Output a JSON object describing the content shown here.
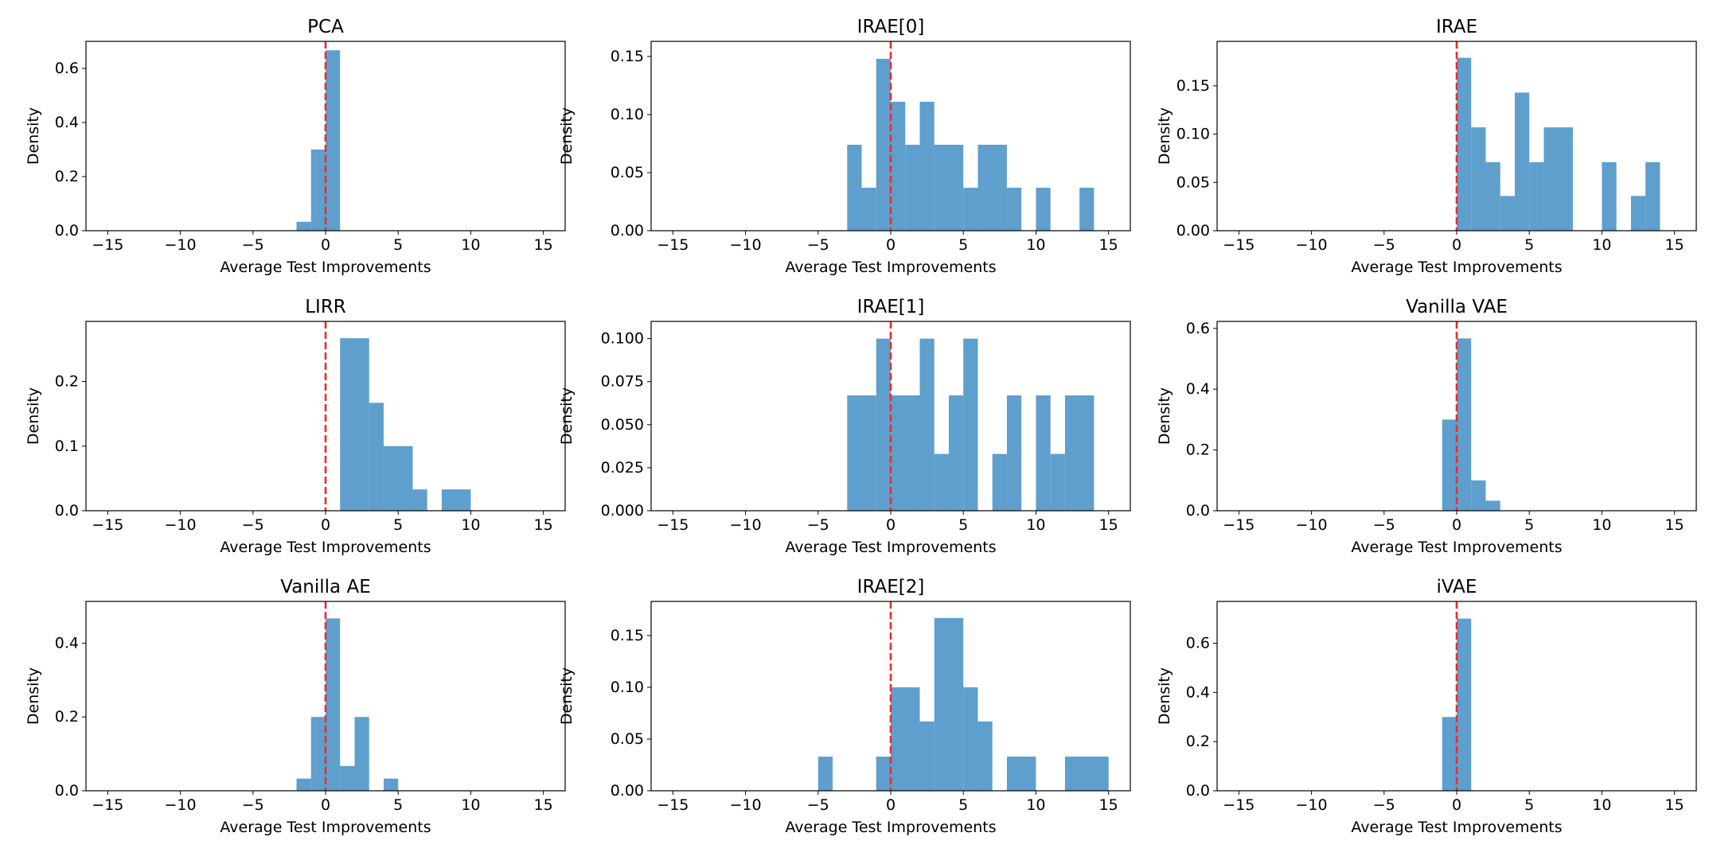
{
  "chart_data": [
    {
      "type": "bar",
      "title": "PCA",
      "xlabel": "Average Test Improvements",
      "ylabel": "Density",
      "xlim": [
        -16.5,
        16.5
      ],
      "ylim": [
        0,
        0.7
      ],
      "xticks": [
        -15,
        -10,
        -5,
        0,
        5,
        10,
        15
      ],
      "xtick_labels": [
        "−15",
        "−10",
        "−5",
        "0",
        "5",
        "10",
        "15"
      ],
      "yticks": [
        0.0,
        0.2,
        0.4,
        0.6
      ],
      "ytick_labels": [
        "0.0",
        "0.2",
        "0.4",
        "0.6"
      ],
      "bins": [
        [
          -2,
          -1,
          0.033
        ],
        [
          -1,
          0,
          0.3
        ],
        [
          0,
          1,
          0.667
        ]
      ],
      "reference_line_x": 0,
      "bar_color": "#5f9fcd",
      "line_color": "#ee2a2a"
    },
    {
      "type": "bar",
      "title": "IRAE[0]",
      "xlabel": "Average Test Improvements",
      "ylabel": "Density",
      "xlim": [
        -16.5,
        16.5
      ],
      "ylim": [
        0,
        0.163
      ],
      "xticks": [
        -15,
        -10,
        -5,
        0,
        5,
        10,
        15
      ],
      "xtick_labels": [
        "−15",
        "−10",
        "−5",
        "0",
        "5",
        "10",
        "15"
      ],
      "yticks": [
        0.0,
        0.05,
        0.1,
        0.15
      ],
      "ytick_labels": [
        "0.00",
        "0.05",
        "0.10",
        "0.15"
      ],
      "bins": [
        [
          -3,
          -2,
          0.074
        ],
        [
          -2,
          -1,
          0.037
        ],
        [
          -1,
          0,
          0.148
        ],
        [
          0,
          1,
          0.111
        ],
        [
          1,
          2,
          0.074
        ],
        [
          2,
          3,
          0.111
        ],
        [
          3,
          5,
          0.074
        ],
        [
          5,
          6,
          0.037
        ],
        [
          6,
          8,
          0.074
        ],
        [
          8,
          9,
          0.037
        ],
        [
          10,
          11,
          0.037
        ],
        [
          13,
          14,
          0.037
        ]
      ],
      "reference_line_x": 0,
      "bar_color": "#5f9fcd",
      "line_color": "#ee2a2a"
    },
    {
      "type": "bar",
      "title": "IRAE",
      "xlabel": "Average Test Improvements",
      "ylabel": "Density",
      "xlim": [
        -16.5,
        16.5
      ],
      "ylim": [
        0,
        0.196
      ],
      "xticks": [
        -15,
        -10,
        -5,
        0,
        5,
        10,
        15
      ],
      "xtick_labels": [
        "−15",
        "−10",
        "−5",
        "0",
        "5",
        "10",
        "15"
      ],
      "yticks": [
        0.0,
        0.05,
        0.1,
        0.15
      ],
      "ytick_labels": [
        "0.00",
        "0.05",
        "0.10",
        "0.15"
      ],
      "bins": [
        [
          0,
          1,
          0.179
        ],
        [
          1,
          2,
          0.107
        ],
        [
          2,
          3,
          0.071
        ],
        [
          3,
          4,
          0.036
        ],
        [
          4,
          5,
          0.143
        ],
        [
          5,
          6,
          0.071
        ],
        [
          6,
          8,
          0.107
        ],
        [
          10,
          11,
          0.071
        ],
        [
          12,
          13,
          0.036
        ],
        [
          13,
          14,
          0.071
        ]
      ],
      "reference_line_x": 0,
      "bar_color": "#5f9fcd",
      "line_color": "#ee2a2a"
    },
    {
      "type": "bar",
      "title": "LIRR",
      "xlabel": "Average Test Improvements",
      "ylabel": "Density",
      "xlim": [
        -16.5,
        16.5
      ],
      "ylim": [
        0,
        0.293
      ],
      "xticks": [
        -15,
        -10,
        -5,
        0,
        5,
        10,
        15
      ],
      "xtick_labels": [
        "−15",
        "−10",
        "−5",
        "0",
        "5",
        "10",
        "15"
      ],
      "yticks": [
        0.0,
        0.1,
        0.2
      ],
      "ytick_labels": [
        "0.0",
        "0.1",
        "0.2"
      ],
      "bins": [
        [
          1,
          3,
          0.267
        ],
        [
          3,
          4,
          0.167
        ],
        [
          4,
          6,
          0.1
        ],
        [
          6,
          7,
          0.033
        ],
        [
          8,
          10,
          0.033
        ]
      ],
      "reference_line_x": 0,
      "bar_color": "#5f9fcd",
      "line_color": "#ee2a2a"
    },
    {
      "type": "bar",
      "title": "IRAE[1]",
      "xlabel": "Average Test Improvements",
      "ylabel": "Density",
      "xlim": [
        -16.5,
        16.5
      ],
      "ylim": [
        0,
        0.11
      ],
      "xticks": [
        -15,
        -10,
        -5,
        0,
        5,
        10,
        15
      ],
      "xtick_labels": [
        "−15",
        "−10",
        "−5",
        "0",
        "5",
        "10",
        "15"
      ],
      "yticks": [
        0.0,
        0.025,
        0.05,
        0.075,
        0.1
      ],
      "ytick_labels": [
        "0.000",
        "0.025",
        "0.050",
        "0.075",
        "0.100"
      ],
      "bins": [
        [
          -3,
          -1,
          0.067
        ],
        [
          -1,
          0,
          0.1
        ],
        [
          0,
          2,
          0.067
        ],
        [
          2,
          3,
          0.1
        ],
        [
          3,
          4,
          0.033
        ],
        [
          4,
          5,
          0.067
        ],
        [
          5,
          6,
          0.1
        ],
        [
          7,
          8,
          0.033
        ],
        [
          8,
          9,
          0.067
        ],
        [
          10,
          11,
          0.067
        ],
        [
          11,
          12,
          0.033
        ],
        [
          12,
          14,
          0.067
        ]
      ],
      "reference_line_x": 0,
      "bar_color": "#5f9fcd",
      "line_color": "#ee2a2a"
    },
    {
      "type": "bar",
      "title": "Vanilla VAE",
      "xlabel": "Average Test Improvements",
      "ylabel": "Density",
      "xlim": [
        -16.5,
        16.5
      ],
      "ylim": [
        0,
        0.623
      ],
      "xticks": [
        -15,
        -10,
        -5,
        0,
        5,
        10,
        15
      ],
      "xtick_labels": [
        "−15",
        "−10",
        "−5",
        "0",
        "5",
        "10",
        "15"
      ],
      "yticks": [
        0.0,
        0.2,
        0.4,
        0.6
      ],
      "ytick_labels": [
        "0.0",
        "0.2",
        "0.4",
        "0.6"
      ],
      "bins": [
        [
          -1,
          0,
          0.3
        ],
        [
          0,
          1,
          0.567
        ],
        [
          1,
          2,
          0.1
        ],
        [
          2,
          3,
          0.033
        ]
      ],
      "reference_line_x": 0,
      "bar_color": "#5f9fcd",
      "line_color": "#ee2a2a"
    },
    {
      "type": "bar",
      "title": "Vanilla AE",
      "xlabel": "Average Test Improvements",
      "ylabel": "Density",
      "xlim": [
        -16.5,
        16.5
      ],
      "ylim": [
        0,
        0.513
      ],
      "xticks": [
        -15,
        -10,
        -5,
        0,
        5,
        10,
        15
      ],
      "xtick_labels": [
        "−15",
        "−10",
        "−5",
        "0",
        "5",
        "10",
        "15"
      ],
      "yticks": [
        0.0,
        0.2,
        0.4
      ],
      "ytick_labels": [
        "0.0",
        "0.2",
        "0.4"
      ],
      "bins": [
        [
          -2,
          -1,
          0.033
        ],
        [
          -1,
          0,
          0.2
        ],
        [
          0,
          1,
          0.467
        ],
        [
          1,
          2,
          0.067
        ],
        [
          2,
          3,
          0.2
        ],
        [
          4,
          5,
          0.033
        ]
      ],
      "reference_line_x": 0,
      "bar_color": "#5f9fcd",
      "line_color": "#ee2a2a"
    },
    {
      "type": "bar",
      "title": "IRAE[2]",
      "xlabel": "Average Test Improvements",
      "ylabel": "Density",
      "xlim": [
        -16.5,
        16.5
      ],
      "ylim": [
        0,
        0.183
      ],
      "xticks": [
        -15,
        -10,
        -5,
        0,
        5,
        10,
        15
      ],
      "xtick_labels": [
        "−15",
        "−10",
        "−5",
        "0",
        "5",
        "10",
        "15"
      ],
      "yticks": [
        0.0,
        0.05,
        0.1,
        0.15
      ],
      "ytick_labels": [
        "0.00",
        "0.05",
        "0.10",
        "0.15"
      ],
      "bins": [
        [
          -5,
          -4,
          0.033
        ],
        [
          -1,
          0,
          0.033
        ],
        [
          0,
          2,
          0.1
        ],
        [
          2,
          3,
          0.067
        ],
        [
          3,
          5,
          0.167
        ],
        [
          5,
          6,
          0.1
        ],
        [
          6,
          7,
          0.067
        ],
        [
          8,
          10,
          0.033
        ],
        [
          12,
          15,
          0.033
        ]
      ],
      "reference_line_x": 0,
      "bar_color": "#5f9fcd",
      "line_color": "#ee2a2a"
    },
    {
      "type": "bar",
      "title": "iVAE",
      "xlabel": "Average Test Improvements",
      "ylabel": "Density",
      "xlim": [
        -16.5,
        16.5
      ],
      "ylim": [
        0,
        0.77
      ],
      "xticks": [
        -15,
        -10,
        -5,
        0,
        5,
        10,
        15
      ],
      "xtick_labels": [
        "−15",
        "−10",
        "−5",
        "0",
        "5",
        "10",
        "15"
      ],
      "yticks": [
        0.0,
        0.2,
        0.4,
        0.6
      ],
      "ytick_labels": [
        "0.0",
        "0.2",
        "0.4",
        "0.6"
      ],
      "bins": [
        [
          -1,
          0,
          0.3
        ],
        [
          0,
          1,
          0.7
        ]
      ],
      "reference_line_x": 0,
      "bar_color": "#5f9fcd",
      "line_color": "#ee2a2a"
    }
  ]
}
